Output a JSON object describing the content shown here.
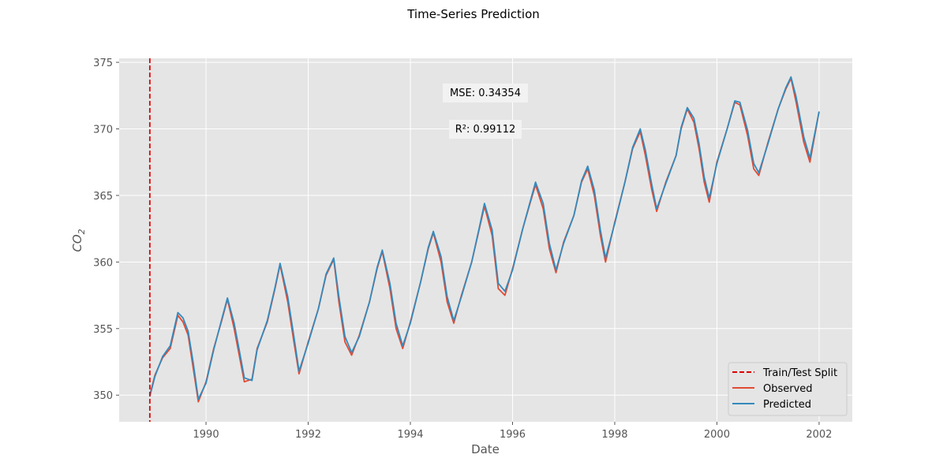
{
  "chart_data": {
    "type": "line",
    "title": "Time-Series Prediction",
    "xlabel": "Date",
    "ylabel": "CO",
    "ylabel_subscript": "2",
    "xlim": [
      1988.3,
      2002.65
    ],
    "ylim": [
      348,
      375.3
    ],
    "xticks": [
      1990,
      1992,
      1994,
      1996,
      1998,
      2000,
      2002
    ],
    "xtick_labels": [
      "1990",
      "1992",
      "1994",
      "1996",
      "1998",
      "2000",
      "2002"
    ],
    "yticks": [
      350,
      355,
      360,
      365,
      370,
      375
    ],
    "ytick_labels": [
      "350",
      "355",
      "360",
      "365",
      "370",
      "375"
    ],
    "grid": true,
    "legend_position": "bottom-right",
    "split_x": 1988.9,
    "annotations": [
      "MSE: 0.34354",
      "R²: 0.99112"
    ],
    "legend": [
      "Train/Test Split",
      "Observed",
      "Predicted"
    ],
    "colors": {
      "split": "#e00000",
      "observed": "#e24a33",
      "predicted": "#348abd",
      "background": "#e5e5e5"
    },
    "x": [
      1988.9,
      1989.0,
      1989.15,
      1989.3,
      1989.45,
      1989.55,
      1989.65,
      1989.75,
      1989.85,
      1990.0,
      1990.15,
      1990.3,
      1990.42,
      1990.55,
      1990.65,
      1990.75,
      1990.9,
      1991.0,
      1991.2,
      1991.35,
      1991.45,
      1991.6,
      1991.72,
      1991.82,
      1992.0,
      1992.2,
      1992.35,
      1992.5,
      1992.6,
      1992.72,
      1992.85,
      1993.0,
      1993.2,
      1993.35,
      1993.45,
      1993.6,
      1993.72,
      1993.85,
      1994.0,
      1994.2,
      1994.35,
      1994.45,
      1994.6,
      1994.72,
      1994.85,
      1995.0,
      1995.2,
      1995.35,
      1995.45,
      1995.6,
      1995.72,
      1995.85,
      1996.0,
      1996.2,
      1996.35,
      1996.45,
      1996.6,
      1996.72,
      1996.85,
      1997.0,
      1997.2,
      1997.35,
      1997.47,
      1997.6,
      1997.72,
      1997.82,
      1998.0,
      1998.2,
      1998.35,
      1998.5,
      1998.6,
      1998.72,
      1998.82,
      1999.0,
      1999.2,
      1999.3,
      1999.42,
      1999.55,
      1999.65,
      1999.75,
      1999.85,
      2000.0,
      2000.2,
      2000.35,
      2000.45,
      2000.6,
      2000.72,
      2000.82,
      2001.0,
      2001.2,
      2001.35,
      2001.45,
      2001.55,
      2001.7,
      2001.82,
      2002.0
    ],
    "series": [
      {
        "name": "Observed",
        "values": [
          350.0,
          351.5,
          352.8,
          353.5,
          356.0,
          355.5,
          354.5,
          352.0,
          349.5,
          351.0,
          353.5,
          355.5,
          357.2,
          355.0,
          353.0,
          351.0,
          351.2,
          353.5,
          355.5,
          358.0,
          359.8,
          357.0,
          354.0,
          351.6,
          354.0,
          356.5,
          359.0,
          360.2,
          357.0,
          354.0,
          353.0,
          354.5,
          357.0,
          359.5,
          360.8,
          358.0,
          355.0,
          353.5,
          355.5,
          358.5,
          361.0,
          362.2,
          360.0,
          357.0,
          355.4,
          357.5,
          360.0,
          362.5,
          364.2,
          362.0,
          358.0,
          357.5,
          359.5,
          362.5,
          364.5,
          365.8,
          364.0,
          361.0,
          359.2,
          361.5,
          363.5,
          366.0,
          367.0,
          365.0,
          362.0,
          360.0,
          363.0,
          366.0,
          368.5,
          369.8,
          368.0,
          365.5,
          363.8,
          366.0,
          368.0,
          370.0,
          371.5,
          370.5,
          368.5,
          366.0,
          364.5,
          367.5,
          370.0,
          372.0,
          371.8,
          369.5,
          367.0,
          366.5,
          369.0,
          371.5,
          373.0,
          373.8,
          372.0,
          369.0,
          367.5,
          371.3
        ]
      },
      {
        "name": "Predicted",
        "values": [
          349.9,
          351.4,
          352.9,
          353.7,
          356.2,
          355.8,
          354.8,
          352.4,
          349.7,
          350.9,
          353.4,
          355.6,
          357.3,
          355.4,
          353.4,
          351.3,
          351.1,
          353.4,
          355.6,
          358.1,
          359.9,
          357.4,
          354.4,
          351.8,
          353.9,
          356.5,
          359.1,
          360.3,
          357.4,
          354.4,
          353.2,
          354.4,
          357.0,
          359.6,
          360.9,
          358.4,
          355.4,
          353.7,
          355.4,
          358.5,
          361.1,
          362.3,
          360.4,
          357.4,
          355.6,
          357.4,
          360.0,
          362.6,
          364.4,
          362.4,
          358.4,
          357.8,
          359.4,
          362.5,
          364.6,
          366.0,
          364.4,
          361.4,
          359.4,
          361.4,
          363.5,
          366.1,
          367.2,
          365.4,
          362.4,
          360.3,
          362.9,
          366.0,
          368.6,
          370.0,
          368.4,
          365.9,
          364.0,
          365.9,
          368.0,
          370.1,
          371.6,
          370.8,
          368.9,
          366.4,
          364.8,
          367.4,
          370.0,
          372.1,
          372.0,
          369.9,
          367.4,
          366.7,
          368.9,
          371.5,
          373.1,
          373.9,
          372.4,
          369.4,
          367.8,
          371.3
        ]
      }
    ]
  }
}
